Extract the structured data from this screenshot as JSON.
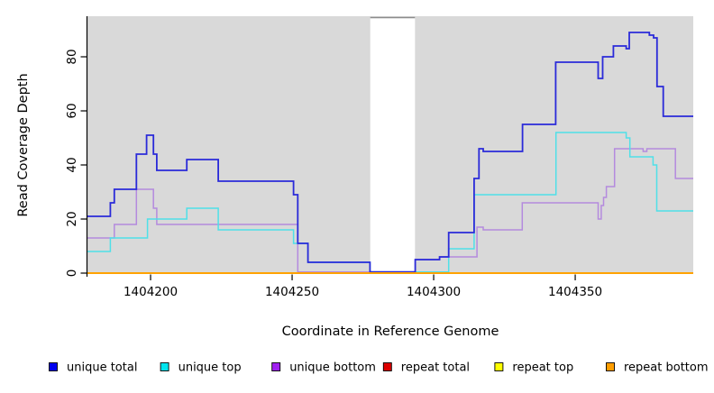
{
  "chart_data": {
    "type": "line",
    "subtype": "step-post",
    "title": "",
    "xlabel": "Coordinate in Reference Genome",
    "ylabel": "Read Coverage Depth",
    "xlim": [
      1404177.7,
      1404391.7
    ],
    "ylim": [
      0,
      95
    ],
    "x_ticks": [
      1404200,
      1404250,
      1404300,
      1404350
    ],
    "y_ticks": [
      0,
      20,
      40,
      60,
      80
    ],
    "grid": "off",
    "plot_bg": "#d9d9d9",
    "gap_region": {
      "start": 1404277.6,
      "end": 1404293.4,
      "fill": "#ffffff",
      "top_border": "#8c8c8c"
    },
    "series": [
      {
        "name": "unique bottom",
        "group": "unique",
        "color": "#b48ade",
        "points": [
          [
            1404177.7,
            13
          ],
          [
            1404187.2,
            18
          ],
          [
            1404195,
            31
          ],
          [
            1404201,
            24
          ],
          [
            1404202.2,
            18
          ],
          [
            1404252,
            0
          ],
          [
            1404293.5,
            5
          ],
          [
            1404302.1,
            6
          ],
          [
            1404315.3,
            17
          ],
          [
            1404317.5,
            16
          ],
          [
            1404331.3,
            26
          ],
          [
            1404358.1,
            20
          ],
          [
            1404359.2,
            25
          ],
          [
            1404360,
            28
          ],
          [
            1404361,
            32
          ],
          [
            1404363.9,
            46
          ],
          [
            1404374,
            45
          ],
          [
            1404375.3,
            46
          ],
          [
            1404385.4,
            35
          ]
        ]
      },
      {
        "name": "unique top",
        "group": "unique",
        "color": "#4fe0e8",
        "points": [
          [
            1404177.7,
            8
          ],
          [
            1404185.8,
            13
          ],
          [
            1404198.9,
            20
          ],
          [
            1404212.8,
            24
          ],
          [
            1404223.9,
            16
          ],
          [
            1404250.5,
            11
          ],
          [
            1404255.6,
            4
          ],
          [
            1404277.5,
            0
          ],
          [
            1404305.3,
            9
          ],
          [
            1404314.3,
            29
          ],
          [
            1404343.2,
            52
          ],
          [
            1404368,
            50
          ],
          [
            1404369.3,
            43
          ],
          [
            1404377.5,
            40
          ],
          [
            1404378.8,
            23
          ]
        ]
      },
      {
        "name": "unique total",
        "group": "unique",
        "color": "#2a2ad9",
        "points": [
          [
            1404177.7,
            21
          ],
          [
            1404185.8,
            26
          ],
          [
            1404187.2,
            31
          ],
          [
            1404195,
            44
          ],
          [
            1404198.6,
            51
          ],
          [
            1404201,
            44
          ],
          [
            1404202.2,
            38
          ],
          [
            1404212.8,
            42
          ],
          [
            1404223.9,
            34
          ],
          [
            1404250.5,
            29
          ],
          [
            1404252,
            11
          ],
          [
            1404255.6,
            4
          ],
          [
            1404277.5,
            0
          ],
          [
            1404293.5,
            5
          ],
          [
            1404302.1,
            6
          ],
          [
            1404305.3,
            15
          ],
          [
            1404314.3,
            35
          ],
          [
            1404316,
            46
          ],
          [
            1404317.5,
            45
          ],
          [
            1404331.4,
            55
          ],
          [
            1404343.1,
            78
          ],
          [
            1404358.1,
            72
          ],
          [
            1404359.7,
            80
          ],
          [
            1404363.5,
            84
          ],
          [
            1404368,
            83
          ],
          [
            1404369.1,
            89
          ],
          [
            1404376.2,
            88
          ],
          [
            1404377.7,
            87
          ],
          [
            1404378.9,
            69
          ],
          [
            1404381.1,
            58
          ]
        ]
      },
      {
        "name": "repeat total",
        "group": "repeat",
        "color": "#dd0000",
        "points": [
          [
            1404177.7,
            0
          ]
        ]
      },
      {
        "name": "repeat top",
        "group": "repeat",
        "color": "#ffff00",
        "points": [
          [
            1404177.7,
            0
          ]
        ]
      },
      {
        "name": "repeat bottom",
        "group": "repeat",
        "color": "#ffa200",
        "points": [
          [
            1404177.7,
            0
          ]
        ]
      }
    ],
    "legend": {
      "position": "bottom",
      "items": [
        {
          "label": "unique total",
          "color": "#0000ee"
        },
        {
          "label": "unique top",
          "color": "#00e5ee"
        },
        {
          "label": "unique bottom",
          "color": "#a020f0"
        },
        {
          "label": "repeat total",
          "color": "#dd0000"
        },
        {
          "label": "repeat top",
          "color": "#ffff00"
        },
        {
          "label": "repeat bottom",
          "color": "#ff9d00"
        }
      ]
    }
  }
}
